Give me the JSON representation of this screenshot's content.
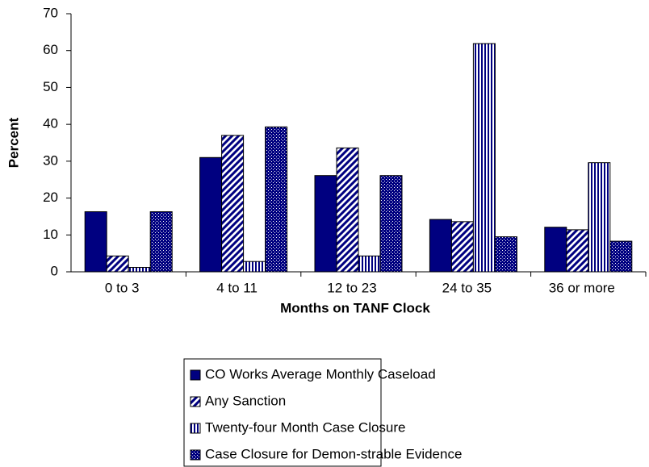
{
  "chart_data": {
    "type": "bar",
    "y_label": "Percent",
    "x_label": "Months on TANF Clock",
    "categories": [
      "0 to 3",
      "4 to 11",
      "12 to 23",
      "24 to 35",
      "36 or more"
    ],
    "series": [
      {
        "name": "CO Works Average Monthly Caseload",
        "color": "#000080",
        "pattern": "solid",
        "values": [
          16.3,
          31.0,
          26.1,
          14.2,
          12.1
        ]
      },
      {
        "name": "Any Sanction",
        "color": "#000080",
        "pattern": "diagonal",
        "values": [
          4.3,
          37.0,
          33.6,
          13.6,
          11.4
        ]
      },
      {
        "name": "Twenty-four Month Case Closure",
        "color": "#000080",
        "pattern": "vertical",
        "values": [
          1.2,
          2.8,
          4.3,
          61.9,
          29.6
        ]
      },
      {
        "name": "Case Closure for Demon-strable Evidence",
        "color": "#000080",
        "pattern": "dots",
        "values": [
          16.3,
          39.3,
          26.1,
          9.5,
          8.3
        ]
      }
    ],
    "ylim": [
      0,
      70
    ],
    "yticks": [
      0,
      10,
      20,
      30,
      40,
      50,
      60,
      70
    ],
    "grid": false
  }
}
